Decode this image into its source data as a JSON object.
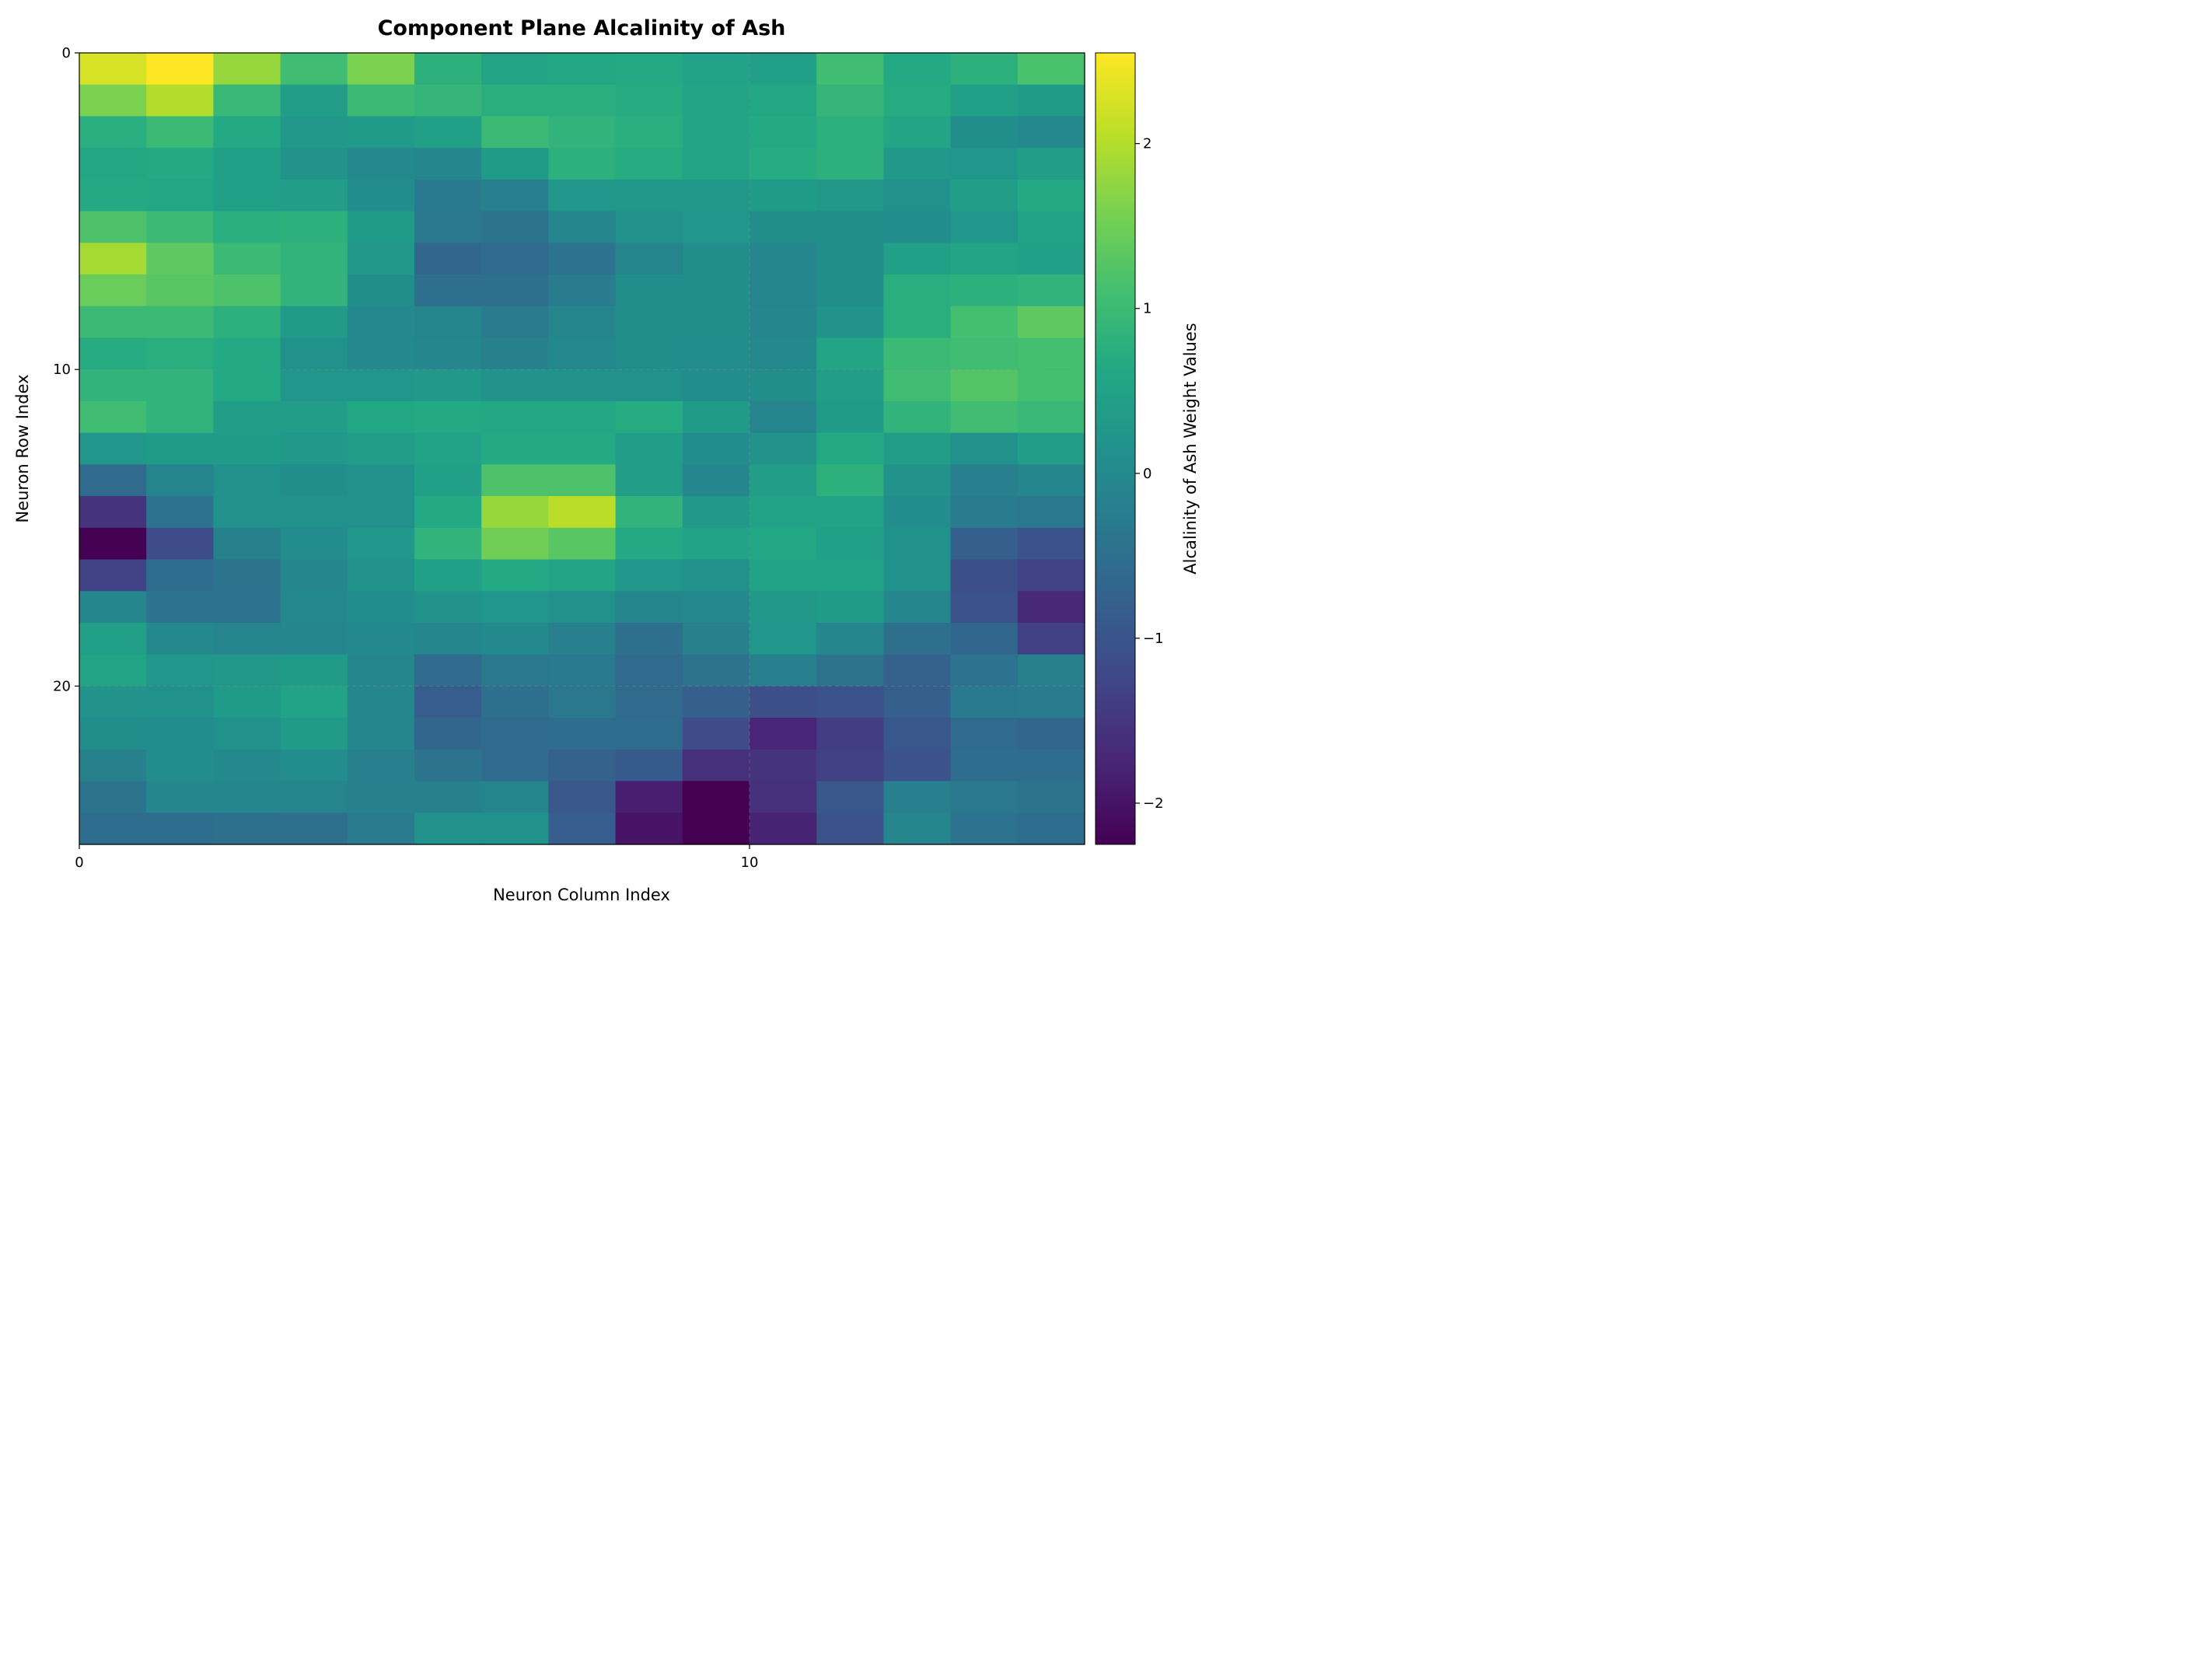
{
  "chart_data": {
    "type": "heatmap",
    "title": "Component Plane Alcalinity of Ash",
    "xlabel": "Neuron Column Index",
    "ylabel": "Neuron Row Index",
    "colorbar_label": "Alcalinity of Ash Weight Values",
    "colormap": "viridis",
    "vmin": -2.25,
    "vmax": 2.55,
    "n_rows": 25,
    "n_cols": 15,
    "x_ticks": [
      0,
      10
    ],
    "x_tick_labels": [
      "0",
      "10"
    ],
    "y_ticks": [
      0,
      10,
      20
    ],
    "y_tick_labels": [
      "0",
      "10",
      "20"
    ],
    "colorbar_ticks": [
      -2,
      -1,
      0,
      1,
      2
    ],
    "colorbar_tick_labels": [
      "−2",
      "−1",
      "0",
      "1",
      "2"
    ],
    "grid": true,
    "values": [
      [
        2.25,
        2.55,
        1.8,
        1.05,
        1.6,
        0.8,
        0.55,
        0.6,
        0.65,
        0.5,
        0.45,
        1.05,
        0.65,
        0.8,
        1.15
      ],
      [
        1.6,
        2.0,
        0.95,
        0.4,
        1.0,
        0.9,
        0.75,
        0.75,
        0.7,
        0.55,
        0.6,
        0.9,
        0.7,
        0.45,
        0.35
      ],
      [
        0.75,
        1.0,
        0.65,
        0.3,
        0.35,
        0.45,
        1.0,
        0.85,
        0.75,
        0.55,
        0.65,
        0.8,
        0.55,
        0.1,
        0.0
      ],
      [
        0.6,
        0.65,
        0.45,
        0.2,
        0.0,
        -0.05,
        0.35,
        0.8,
        0.7,
        0.55,
        0.7,
        0.8,
        0.3,
        0.25,
        0.4
      ],
      [
        0.65,
        0.6,
        0.45,
        0.4,
        0.05,
        -0.3,
        -0.2,
        0.25,
        0.3,
        0.3,
        0.35,
        0.3,
        0.15,
        0.4,
        0.65
      ],
      [
        1.2,
        1.0,
        0.75,
        0.8,
        0.35,
        -0.35,
        -0.4,
        -0.05,
        0.15,
        0.25,
        0.1,
        0.1,
        0.05,
        0.25,
        0.5
      ],
      [
        1.9,
        1.35,
        1.0,
        0.85,
        0.3,
        -0.65,
        -0.6,
        -0.45,
        -0.1,
        0.1,
        -0.05,
        0.1,
        0.45,
        0.55,
        0.45
      ],
      [
        1.45,
        1.3,
        1.2,
        0.85,
        0.1,
        -0.5,
        -0.5,
        -0.25,
        0.1,
        0.1,
        -0.1,
        0.1,
        0.75,
        0.8,
        0.85
      ],
      [
        1.0,
        1.0,
        0.8,
        0.35,
        0.0,
        -0.1,
        -0.25,
        -0.1,
        0.1,
        0.1,
        -0.05,
        0.2,
        0.75,
        1.1,
        1.35
      ],
      [
        0.7,
        0.75,
        0.65,
        0.15,
        0.0,
        -0.05,
        -0.15,
        0.0,
        0.1,
        0.05,
        0.0,
        0.55,
        1.0,
        1.05,
        1.1
      ],
      [
        0.85,
        0.85,
        0.65,
        0.25,
        0.25,
        0.3,
        0.2,
        0.2,
        0.15,
        0.05,
        0.1,
        0.4,
        1.05,
        1.25,
        1.1
      ],
      [
        1.05,
        0.85,
        0.4,
        0.4,
        0.6,
        0.65,
        0.6,
        0.6,
        0.7,
        0.35,
        -0.1,
        0.35,
        0.85,
        1.05,
        0.95
      ],
      [
        0.25,
        0.35,
        0.35,
        0.3,
        0.4,
        0.5,
        0.65,
        0.65,
        0.4,
        0.05,
        0.2,
        0.65,
        0.4,
        0.15,
        0.4
      ],
      [
        -0.6,
        -0.1,
        0.15,
        0.1,
        0.15,
        0.45,
        1.2,
        1.2,
        0.4,
        -0.05,
        0.4,
        0.8,
        0.2,
        -0.2,
        -0.05
      ],
      [
        -1.55,
        -0.45,
        0.15,
        0.15,
        0.15,
        0.65,
        1.8,
        2.05,
        0.85,
        0.3,
        0.5,
        0.5,
        0.05,
        -0.25,
        -0.35
      ],
      [
        -2.25,
        -1.15,
        -0.15,
        0.05,
        0.25,
        0.85,
        1.5,
        1.3,
        0.65,
        0.5,
        0.6,
        0.45,
        0.15,
        -0.8,
        -1.0
      ],
      [
        -1.3,
        -0.55,
        -0.4,
        -0.05,
        0.15,
        0.45,
        0.65,
        0.55,
        0.25,
        0.15,
        0.5,
        0.5,
        0.15,
        -1.1,
        -1.3
      ],
      [
        -0.05,
        -0.45,
        -0.45,
        0.0,
        0.05,
        0.2,
        0.25,
        0.15,
        -0.05,
        0.0,
        0.3,
        0.35,
        -0.05,
        -1.05,
        -1.7
      ],
      [
        0.45,
        0.0,
        -0.1,
        -0.05,
        0.0,
        -0.05,
        0.0,
        -0.2,
        -0.5,
        -0.15,
        0.25,
        -0.05,
        -0.5,
        -0.65,
        -1.35
      ],
      [
        0.55,
        0.25,
        0.3,
        0.35,
        -0.05,
        -0.6,
        -0.35,
        -0.3,
        -0.6,
        -0.4,
        -0.2,
        -0.4,
        -0.75,
        -0.45,
        -0.15
      ],
      [
        0.2,
        0.15,
        0.35,
        0.5,
        -0.05,
        -0.85,
        -0.5,
        -0.35,
        -0.6,
        -0.8,
        -1.1,
        -1.05,
        -0.8,
        -0.3,
        -0.25
      ],
      [
        0.1,
        0.05,
        0.15,
        0.35,
        -0.05,
        -0.65,
        -0.6,
        -0.55,
        -0.55,
        -1.15,
        -1.75,
        -1.4,
        -0.95,
        -0.6,
        -0.65
      ],
      [
        -0.15,
        0.05,
        0.0,
        0.05,
        -0.2,
        -0.4,
        -0.6,
        -0.75,
        -0.9,
        -1.6,
        -1.55,
        -1.35,
        -1.05,
        -0.55,
        -0.55
      ],
      [
        -0.4,
        -0.05,
        -0.05,
        -0.1,
        -0.15,
        -0.15,
        -0.1,
        -0.95,
        -1.85,
        -2.25,
        -1.6,
        -0.95,
        -0.2,
        -0.35,
        -0.4
      ],
      [
        -0.55,
        -0.55,
        -0.5,
        -0.5,
        -0.25,
        0.15,
        0.15,
        -0.85,
        -2.0,
        -2.25,
        -1.8,
        -1.05,
        -0.1,
        -0.45,
        -0.55
      ]
    ]
  }
}
